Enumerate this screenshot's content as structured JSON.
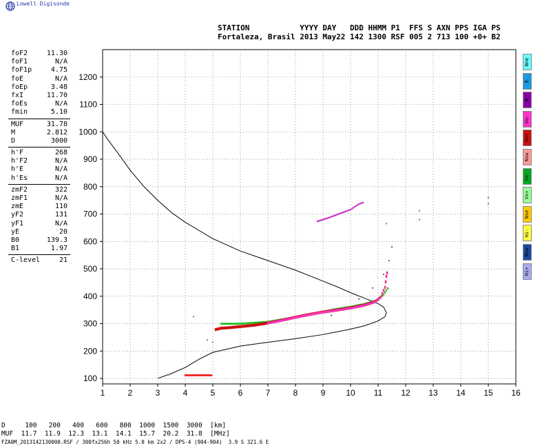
{
  "header": {
    "brand": "Lowell Digisonde",
    "line1": "STATION           YYYY DAY   DDD HHMM P1  FFS S AXN PPS IGA PS",
    "line2": "Fortaleza, Brasil 2013 May22 142 1300 RSF 005 2 713 100 +0+ B2"
  },
  "params": [
    {
      "label": "foF2",
      "value": "11.30"
    },
    {
      "label": "foF1",
      "value": "N/A"
    },
    {
      "label": "foF1p",
      "value": "4.75"
    },
    {
      "label": "foE",
      "value": "N/A"
    },
    {
      "label": "foEp",
      "value": "3.48"
    },
    {
      "label": "fxI",
      "value": "11.70"
    },
    {
      "label": "foEs",
      "value": "N/A"
    },
    {
      "label": "fmin",
      "value": "5.10"
    },
    {
      "sep": true
    },
    {
      "label": "MUF",
      "value": "31.78"
    },
    {
      "label": "M",
      "value": "2.812"
    },
    {
      "label": "D",
      "value": "3000"
    },
    {
      "sep": true
    },
    {
      "label": "h'F",
      "value": "268"
    },
    {
      "label": "h'F2",
      "value": "N/A"
    },
    {
      "label": "h'E",
      "value": "N/A"
    },
    {
      "label": "h'Es",
      "value": "N/A"
    },
    {
      "sep": true
    },
    {
      "label": "zmF2",
      "value": "322"
    },
    {
      "label": "zmF1",
      "value": "N/A"
    },
    {
      "label": "zmE",
      "value": "110"
    },
    {
      "label": "yF2",
      "value": "131"
    },
    {
      "label": "yF1",
      "value": "N/A"
    },
    {
      "label": "yE",
      "value": "20"
    },
    {
      "label": "B0",
      "value": "139.3"
    },
    {
      "label": "B1",
      "value": "1.97"
    },
    {
      "sep": true
    },
    {
      "label": "C-level",
      "value": "21"
    }
  ],
  "legend": [
    {
      "label": "Nne",
      "color": "#66ffff"
    },
    {
      "label": "E",
      "color": "#1a9ae0"
    },
    {
      "label": "W",
      "color": "#8a00a8"
    },
    {
      "label": "Vo-",
      "color": "#ff33cc"
    },
    {
      "label": "Vo+",
      "color": "#cc1111"
    },
    {
      "label": "Nsw",
      "color": "#ff9999"
    },
    {
      "label": "Vx-",
      "color": "#00aa22"
    },
    {
      "label": "Vx+",
      "color": "#99ff99"
    },
    {
      "label": "Nse",
      "color": "#ffcc00"
    },
    {
      "label": "Hi-",
      "color": "#ffff44"
    },
    {
      "label": "Nnw",
      "color": "#1a4aa0"
    },
    {
      "label": "Hi+",
      "color": "#aaaaee"
    }
  ],
  "muf_table": {
    "header": "D     100   200   400   600   800  1000  1500  3000  [km]",
    "row": "MUF  11.7  11.9  12.3  13.1  14.1  15.7  20.2  31.8  [MHz]"
  },
  "footer": "FZA0M_2013142130000.RSF / 300fx256h 50 kHz 5.0 km 2x2 / DPS-4 (904-904)  3.9 S 321.6 E",
  "chart_data": {
    "type": "scatter",
    "xlim": [
      1,
      16
    ],
    "ylim": [
      80,
      1300
    ],
    "xticks": [
      1,
      2,
      3,
      4,
      5,
      6,
      7,
      8,
      9,
      10,
      11,
      12,
      13,
      14,
      15,
      16
    ],
    "yticks": [
      100,
      200,
      300,
      400,
      500,
      600,
      700,
      800,
      900,
      1000,
      1100,
      1200
    ],
    "grid": true,
    "profile_curve": [
      [
        1.0,
        1000
      ],
      [
        1.2,
        970
      ],
      [
        1.5,
        930
      ],
      [
        2.0,
        860
      ],
      [
        2.5,
        800
      ],
      [
        3.0,
        750
      ],
      [
        3.5,
        705
      ],
      [
        4.0,
        670
      ],
      [
        4.5,
        640
      ],
      [
        5.0,
        610
      ],
      [
        6.0,
        565
      ],
      [
        7.0,
        530
      ],
      [
        8.0,
        495
      ],
      [
        8.5,
        475
      ],
      [
        9.0,
        455
      ],
      [
        9.5,
        435
      ],
      [
        10.0,
        413
      ],
      [
        10.5,
        393
      ],
      [
        11.0,
        373
      ],
      [
        11.2,
        360
      ],
      [
        11.3,
        340
      ],
      [
        11.25,
        325
      ],
      [
        11.0,
        310
      ],
      [
        10.5,
        292
      ],
      [
        10.0,
        280
      ],
      [
        9.5,
        270
      ],
      [
        9.0,
        260
      ],
      [
        8.0,
        245
      ],
      [
        7.0,
        232
      ],
      [
        6.0,
        218
      ],
      [
        5.0,
        195
      ],
      [
        4.5,
        170
      ],
      [
        4.0,
        140
      ],
      [
        3.5,
        118
      ],
      [
        3.0,
        100
      ]
    ],
    "vo_trace": [
      [
        5.1,
        276
      ],
      [
        5.3,
        281
      ],
      [
        5.6,
        283
      ],
      [
        6.0,
        287
      ],
      [
        6.5,
        292
      ],
      [
        7.0,
        300
      ],
      [
        7.5,
        310
      ],
      [
        8.0,
        321
      ],
      [
        8.5,
        331
      ],
      [
        9.0,
        340
      ],
      [
        9.5,
        347
      ],
      [
        10.0,
        355
      ],
      [
        10.5,
        365
      ],
      [
        10.9,
        378
      ],
      [
        11.1,
        395
      ],
      [
        11.25,
        430
      ],
      [
        11.3,
        470
      ],
      [
        11.35,
        495
      ]
    ],
    "vx_trace": [
      [
        5.3,
        298
      ],
      [
        6.0,
        298
      ],
      [
        7.0,
        305
      ],
      [
        8.0,
        322
      ],
      [
        9.0,
        342
      ],
      [
        9.5,
        352
      ],
      [
        10.0,
        360
      ],
      [
        10.5,
        370
      ],
      [
        11.0,
        385
      ],
      [
        11.2,
        405
      ],
      [
        11.4,
        435
      ]
    ],
    "e_trace": [
      [
        4.0,
        110
      ],
      [
        4.2,
        110
      ],
      [
        4.5,
        110
      ],
      [
        4.8,
        110
      ],
      [
        5.0,
        110
      ]
    ],
    "multihop_trace": [
      [
        8.8,
        672
      ],
      [
        9.2,
        685
      ],
      [
        9.6,
        700
      ],
      [
        10.0,
        715
      ],
      [
        10.3,
        735
      ],
      [
        10.5,
        742
      ]
    ],
    "ext_dotted": [
      [
        9.3,
        330
      ],
      [
        9.8,
        355
      ],
      [
        10.3,
        390
      ],
      [
        10.8,
        430
      ],
      [
        11.2,
        480
      ],
      [
        11.4,
        530
      ],
      [
        11.5,
        580
      ]
    ],
    "scatter_points": [
      [
        4.3,
        325
      ],
      [
        5.0,
        232
      ],
      [
        4.8,
        240
      ],
      [
        12.5,
        712
      ],
      [
        12.5,
        680
      ],
      [
        15.0,
        738
      ],
      [
        15.0,
        760
      ],
      [
        11.3,
        665
      ],
      [
        3.4,
        113
      ]
    ]
  }
}
